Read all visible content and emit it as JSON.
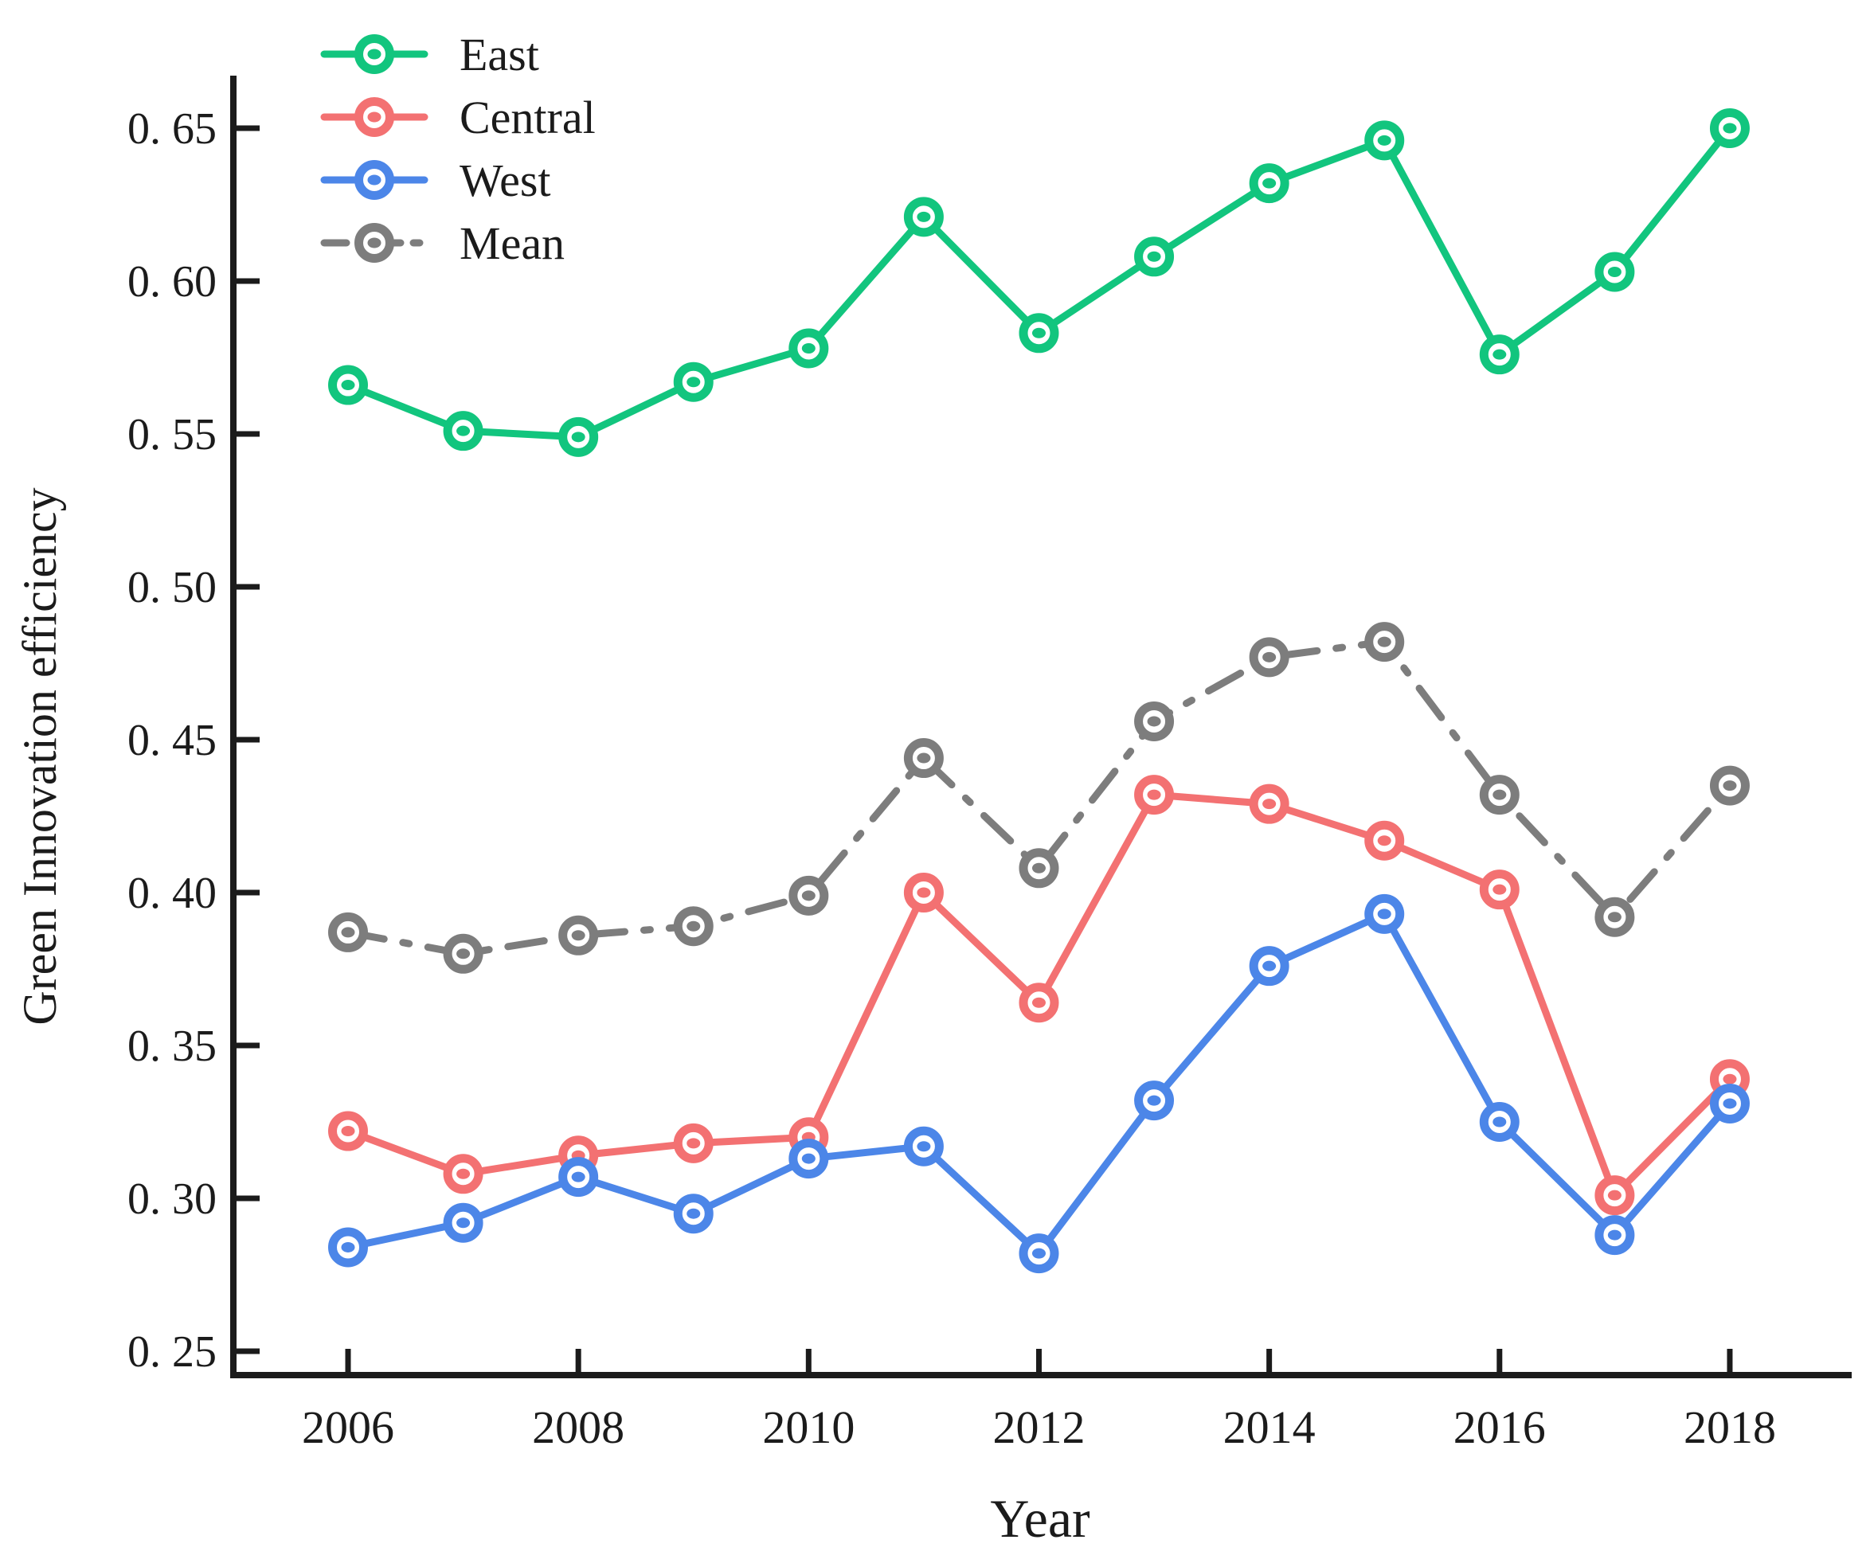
{
  "figure": {
    "background": "#ffffff",
    "axis_color": "#1b1b1b"
  },
  "chart_data": {
    "type": "line",
    "title": "",
    "xlabel": "Year",
    "ylabel": "Green Innovation efficiency",
    "x": [
      2006,
      2007,
      2008,
      2009,
      2010,
      2011,
      2012,
      2013,
      2014,
      2015,
      2016,
      2017,
      2018
    ],
    "xticks": [
      2006,
      2008,
      2010,
      2012,
      2014,
      2016,
      2018
    ],
    "xtick_labels": [
      "2006",
      "2008",
      "2010",
      "2012",
      "2014",
      "2016",
      "2018"
    ],
    "yticks": [
      0.25,
      0.3,
      0.35,
      0.4,
      0.45,
      0.5,
      0.55,
      0.6,
      0.65
    ],
    "ytick_labels": [
      "0. 25",
      "0. 30",
      "0. 35",
      "0. 40",
      "0. 45",
      "0. 50",
      "0. 55",
      "0. 60",
      "0. 65"
    ],
    "xlim": [
      2005.0,
      2019.1
    ],
    "ylim": [
      0.25,
      0.675
    ],
    "grid": false,
    "legend_position": "upper-left",
    "marker": "ring-dot",
    "series": [
      {
        "name": "East",
        "color": "#12C57E",
        "line_style": "solid",
        "values": [
          0.566,
          0.551,
          0.549,
          0.567,
          0.578,
          0.621,
          0.583,
          0.608,
          0.632,
          0.646,
          0.576,
          0.603,
          0.65
        ]
      },
      {
        "name": "Central",
        "color": "#F37172",
        "line_style": "solid",
        "values": [
          0.322,
          0.308,
          0.314,
          0.318,
          0.32,
          0.4,
          0.364,
          0.432,
          0.429,
          0.417,
          0.401,
          0.301,
          0.339
        ]
      },
      {
        "name": "West",
        "color": "#4C86E8",
        "line_style": "solid",
        "values": [
          0.284,
          0.292,
          0.307,
          0.295,
          0.313,
          0.317,
          0.282,
          0.332,
          0.376,
          0.393,
          0.325,
          0.288,
          0.331
        ]
      },
      {
        "name": "Mean",
        "color": "#7D7D7D",
        "line_style": "dash-dot",
        "values": [
          0.387,
          0.38,
          0.386,
          0.389,
          0.399,
          0.444,
          0.408,
          0.456,
          0.477,
          0.482,
          0.432,
          0.392,
          0.435
        ]
      }
    ]
  }
}
